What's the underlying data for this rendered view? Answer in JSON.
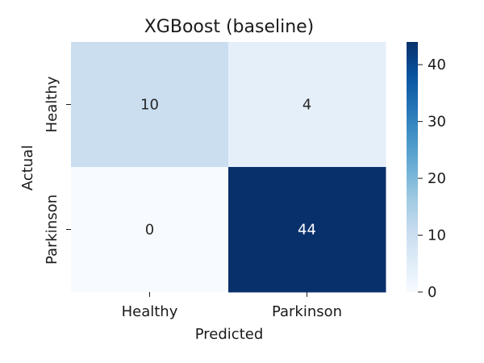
{
  "chart_data": {
    "type": "heatmap",
    "title": "XGBoost (baseline)",
    "xlabel": "Predicted",
    "ylabel": "Actual",
    "x_categories": [
      "Healthy",
      "Parkinson"
    ],
    "y_categories": [
      "Healthy",
      "Parkinson"
    ],
    "values": [
      [
        10,
        4
      ],
      [
        0,
        44
      ]
    ],
    "colorscale": "Blues",
    "vmin": 0,
    "vmax": 44,
    "colorbar_ticks": [
      "0",
      "10",
      "20",
      "30",
      "40"
    ],
    "annotations": true,
    "grid": false
  }
}
